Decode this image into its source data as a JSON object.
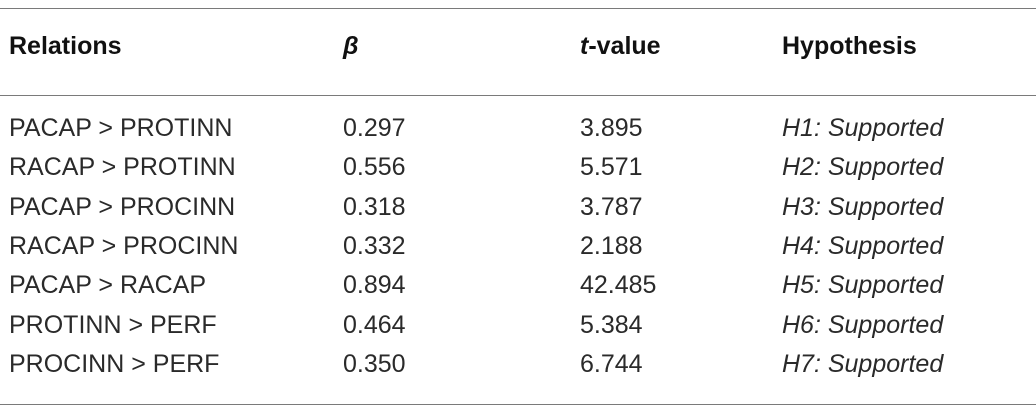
{
  "table": {
    "headers": {
      "relations": "Relations",
      "beta": "β",
      "t_value_italic": "t",
      "t_value_rest": "-value",
      "hypothesis": "Hypothesis"
    },
    "rows": [
      {
        "relation": "PACAP > PROTINN",
        "beta": "0.297",
        "t_value": "3.895",
        "hypothesis": "H1: Supported"
      },
      {
        "relation": "RACAP > PROTINN",
        "beta": "0.556",
        "t_value": "5.571",
        "hypothesis": "H2: Supported"
      },
      {
        "relation": "PACAP > PROCINN",
        "beta": "0.318",
        "t_value": "3.787",
        "hypothesis": "H3: Supported"
      },
      {
        "relation": "RACAP > PROCINN",
        "beta": "0.332",
        "t_value": "2.188",
        "hypothesis": "H4: Supported"
      },
      {
        "relation": "PACAP > RACAP",
        "beta": "0.894",
        "t_value": "42.485",
        "hypothesis": "H5: Supported"
      },
      {
        "relation": "PROTINN > PERF",
        "beta": "0.464",
        "t_value": "5.384",
        "hypothesis": "H6: Supported"
      },
      {
        "relation": "PROCINN > PERF",
        "beta": "0.350",
        "t_value": "6.744",
        "hypothesis": "H7: Supported"
      }
    ]
  }
}
